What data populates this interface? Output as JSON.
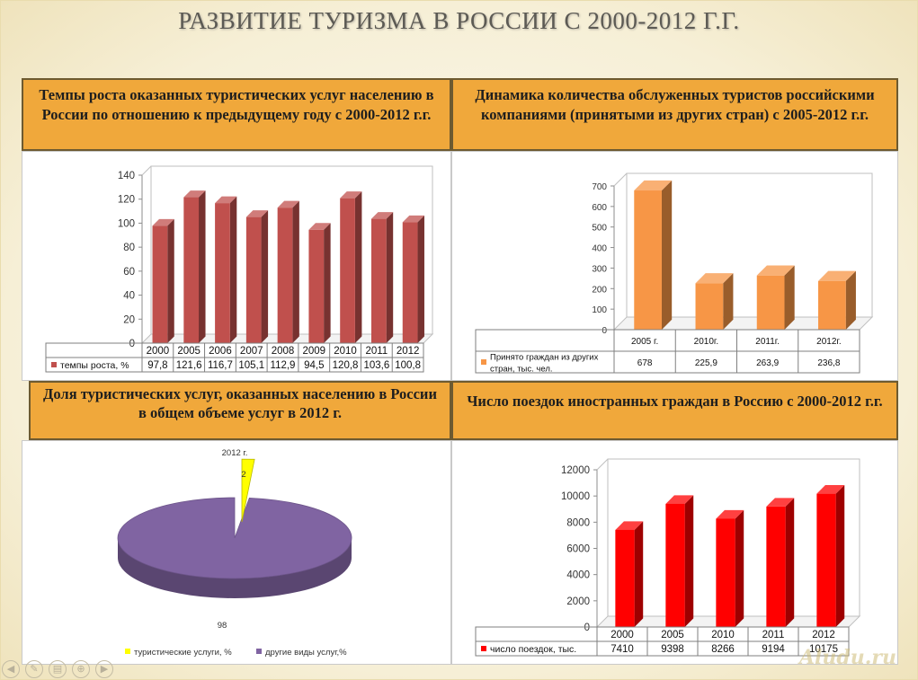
{
  "page_title": "РАЗВИТИЕ ТУРИЗМА В РОССИИ С 2000-2012 Г.Г.",
  "panels": {
    "growth": {
      "title": "Темпы роста оказанных туристических услуг населению в России по отношению к предыдущему году с 2000-2012 г.г."
    },
    "tourists": {
      "title": "Динамика количества обслуженных туристов российскими компаниями (принятыми из других стран) с 2005-2012 г.г."
    },
    "share": {
      "title": "Доля туристических услуг, оказанных населению в России в общем объеме услуг в 2012 г."
    },
    "trips": {
      "title": "Число поездок иностранных граждан в Россию с 2000-2012 г.г."
    }
  },
  "watermark": "Aludu.ru",
  "chart_data": [
    {
      "id": "growth",
      "type": "bar",
      "categories": [
        "2000",
        "2005",
        "2006",
        "2007",
        "2008",
        "2009",
        "2010",
        "2011",
        "2012"
      ],
      "series": [
        {
          "name": "темпы роста, %",
          "values": [
            97.8,
            121.6,
            116.7,
            105.1,
            112.9,
            94.5,
            120.8,
            103.6,
            100.8
          ]
        }
      ],
      "value_labels": [
        "97,8",
        "121,6",
        "116,7",
        "105,1",
        "112,9",
        "94,5",
        "120,8",
        "103,6",
        "100,8"
      ],
      "ylim": [
        0,
        140
      ],
      "yticks": [
        0,
        20,
        40,
        60,
        80,
        100,
        120,
        140
      ],
      "grid": false,
      "data_table": true,
      "color": "#c0504d"
    },
    {
      "id": "tourists",
      "type": "bar",
      "categories": [
        "2005 г.",
        "2010г.",
        "2011г.",
        "2012г."
      ],
      "series": [
        {
          "name": "Принято граждан из других стран, тыс. чел.",
          "values": [
            678,
            225.9,
            263.9,
            236.8
          ]
        }
      ],
      "value_labels": [
        "678",
        "225,9",
        "263,9",
        "236,8"
      ],
      "ylim": [
        0,
        700
      ],
      "yticks": [
        0,
        100,
        200,
        300,
        400,
        500,
        600,
        700
      ],
      "grid": false,
      "data_table": true,
      "color": "#f79646"
    },
    {
      "id": "share",
      "type": "pie",
      "title": "2012 г.",
      "labels": [
        "туристические услуги, %",
        "другие виды услуг,%"
      ],
      "values": [
        2,
        98
      ],
      "value_labels": [
        "2",
        "98"
      ],
      "colors": [
        "#ffff00",
        "#8064a2"
      ],
      "legend": "bottom"
    },
    {
      "id": "trips",
      "type": "bar",
      "categories": [
        "2000",
        "2005",
        "2010",
        "2011",
        "2012"
      ],
      "series": [
        {
          "name": "число поездок, тыс.",
          "values": [
            7410,
            9398,
            8266,
            9194,
            10175
          ]
        }
      ],
      "value_labels": [
        "7410",
        "9398",
        "8266",
        "9194",
        "10175"
      ],
      "ylim": [
        0,
        12000
      ],
      "yticks": [
        0,
        2000,
        4000,
        6000,
        8000,
        10000,
        12000
      ],
      "grid": false,
      "data_table": true,
      "color": "#ff0000"
    }
  ]
}
